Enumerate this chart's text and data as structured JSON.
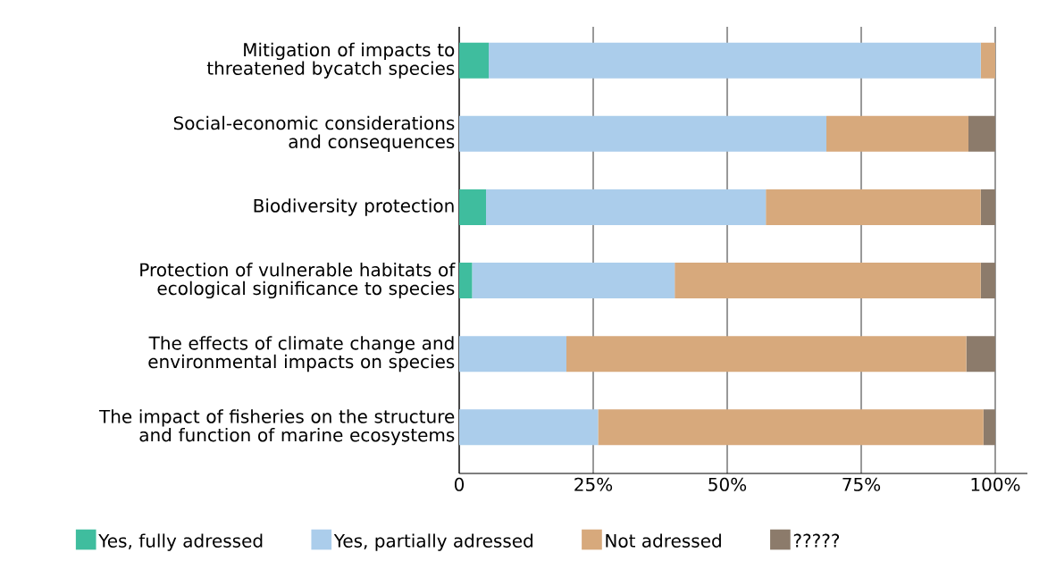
{
  "chart_data": {
    "type": "bar",
    "orientation": "horizontal",
    "stacked": true,
    "categories": [
      "Mitigation of impacts to threatened bycatch species",
      "Social-economic considerations and consequences",
      "Biodiversity protection",
      "Protection of vulnerable habitats of ecological significance to species",
      "The effects of climate change and environmental impacts on species",
      "The impact of fisheries on the structure and function of marine ecosystems"
    ],
    "series": [
      {
        "name": "Yes, fully adressed",
        "color": "#3fbd9e",
        "values": [
          5.5,
          0,
          5.0,
          2.4,
          0,
          0
        ]
      },
      {
        "name": "Yes, partially adressed",
        "color": "#abcdeb",
        "values": [
          91.8,
          68.5,
          52.2,
          37.8,
          20.0,
          25.9
        ]
      },
      {
        "name": "Not adressed",
        "color": "#d7a97c",
        "values": [
          2.7,
          26.5,
          40.1,
          57.1,
          74.6,
          71.9
        ]
      },
      {
        "name": "?????",
        "color": "#8c7b6b",
        "values": [
          0,
          5.0,
          2.7,
          2.7,
          5.4,
          2.2
        ]
      }
    ],
    "xlim": [
      0,
      106
    ],
    "xticks": [
      0,
      {
        "value": 25,
        "label": "25%"
      },
      {
        "value": 50,
        "label": "50%"
      },
      {
        "value": 75,
        "label": "75%"
      },
      {
        "value": 100,
        "label": "100%"
      }
    ],
    "grid": "x",
    "legend": "bottom"
  }
}
